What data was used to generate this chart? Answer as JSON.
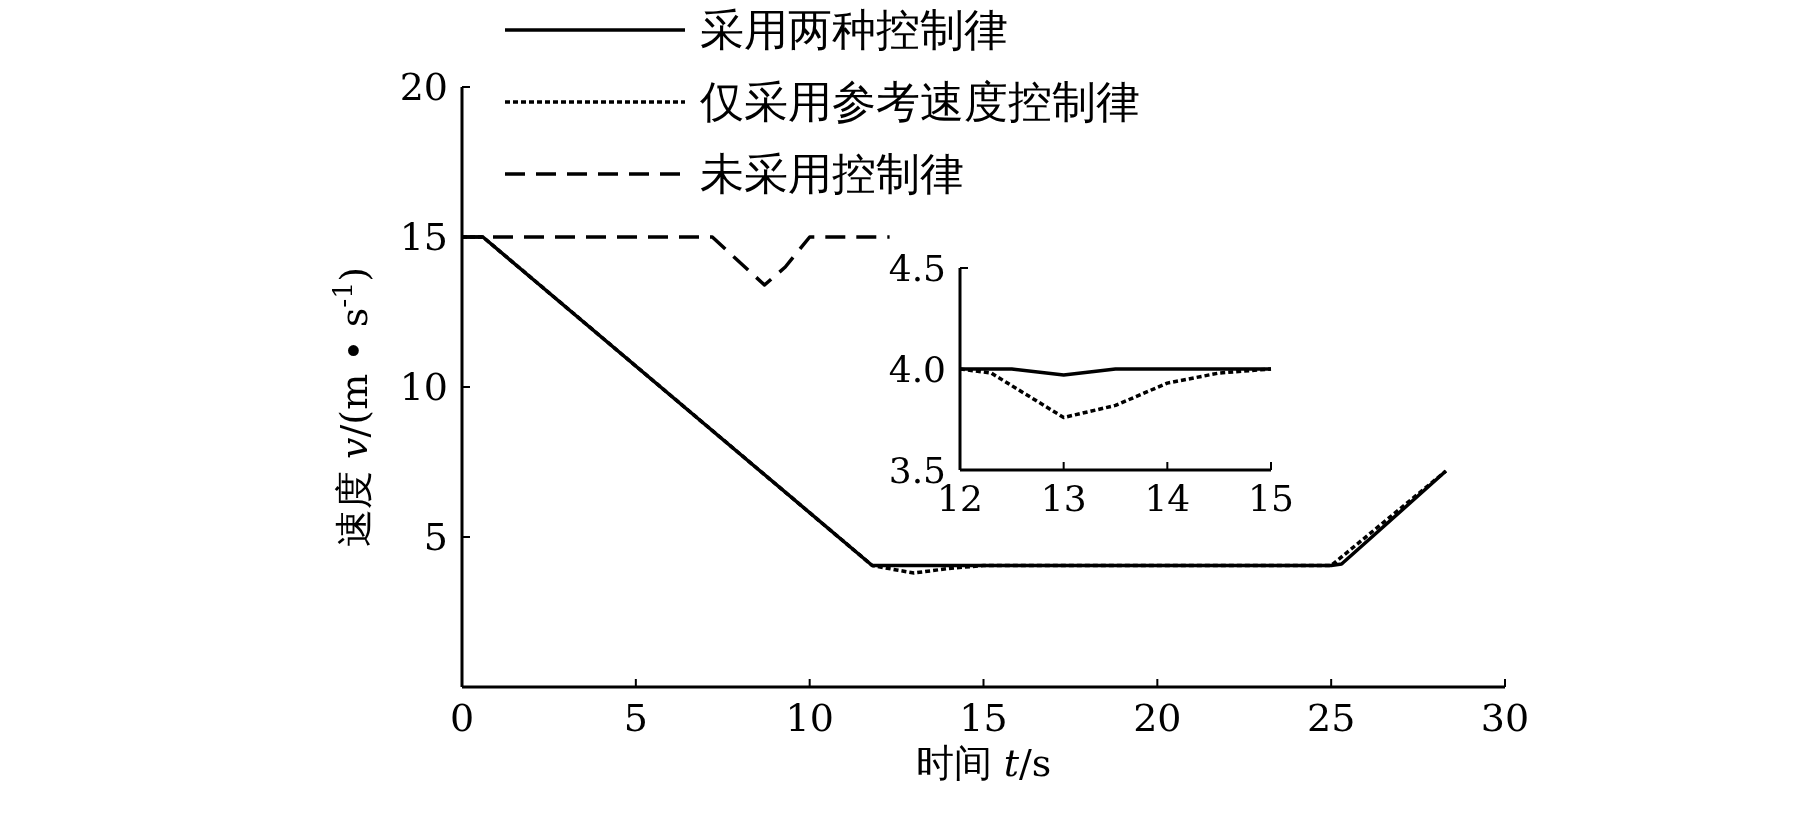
{
  "chart_data": [
    {
      "type": "line",
      "xlabel": "时间 *t*/s",
      "ylabel": "速度 *v*/(m • s$^{-1}$)",
      "xlim": [
        0,
        30
      ],
      "ylim": [
        0,
        20
      ],
      "xticks": [
        0,
        5,
        10,
        15,
        20,
        25,
        30
      ],
      "yticks": [
        5,
        10,
        15,
        20
      ],
      "legend": "top",
      "grid": false,
      "series": [
        {
          "name": "采用两种控制律",
          "color": "#000000",
          "line_style": "solid",
          "x": [
            0,
            0.6,
            11.8,
            25,
            25.3,
            28.3
          ],
          "values": [
            15,
            15,
            4.05,
            4.05,
            4.1,
            7.2
          ]
        },
        {
          "name": "仅采用参考速度控制律",
          "color": "#000000",
          "line_style": "dotted",
          "x": [
            0,
            0.6,
            11.8,
            12.5,
            13,
            14,
            15,
            25,
            28.3
          ],
          "values": [
            15,
            15,
            4.05,
            3.9,
            3.8,
            3.95,
            4.05,
            4.05,
            7.2
          ]
        },
        {
          "name": "未采用控制律",
          "color": "#000000",
          "line_style": "dashed",
          "x": [
            0,
            7.2,
            8.7,
            9.3,
            10,
            12.3
          ],
          "values": [
            15,
            15,
            13.4,
            14,
            15,
            15
          ]
        }
      ]
    },
    {
      "type": "line",
      "xlim": [
        12,
        15
      ],
      "ylim": [
        3.5,
        4.5
      ],
      "xticks": [
        12,
        13,
        14,
        15
      ],
      "yticks": [
        3.5,
        {
          "value": 4,
          "label": "4.0"
        },
        4.5
      ],
      "grid": false,
      "series": [
        {
          "color": "#000000",
          "line_style": "solid",
          "x": [
            12,
            12.5,
            13,
            13.5,
            14,
            15
          ],
          "values": [
            4,
            4,
            3.97,
            4,
            4,
            4
          ]
        },
        {
          "color": "#000000",
          "line_style": "dotted",
          "x": [
            12,
            12.3,
            13,
            13.5,
            14,
            14.5,
            15
          ],
          "values": [
            4,
            3.98,
            3.76,
            3.82,
            3.93,
            3.98,
            4
          ]
        }
      ]
    }
  ]
}
